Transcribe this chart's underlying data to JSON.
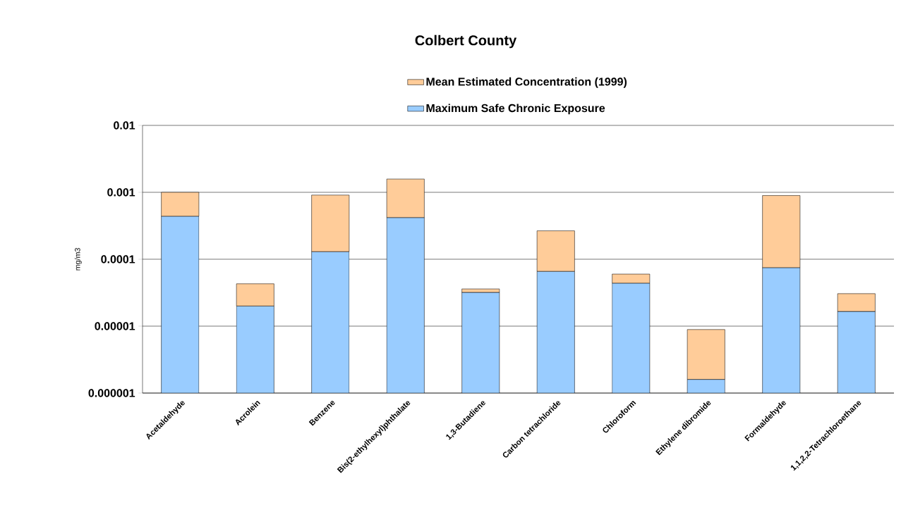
{
  "chart_data": {
    "type": "bar",
    "title": "Colbert County",
    "ylabel": "mg/m3",
    "stacked": true,
    "log": "y",
    "grid": "y",
    "legend": "top",
    "categories": [
      "Acetaldehyde",
      "Acrolein",
      "Benzene",
      "Bis(2-ethylhexyl)phthalate",
      "1,3-Butadiene",
      "Carbon tetrachloride",
      "Chloroform",
      "Ethylene dibromide",
      "Formaldehyde",
      "1,1,2,2-Tetrachloroethane"
    ],
    "series": [
      {
        "name": "Maximum Safe Chronic Exposure",
        "color": "#99ccff",
        "values": [
          0.00044,
          2e-05,
          0.00013,
          0.00042,
          3.2e-05,
          6.6e-05,
          4.4e-05,
          1.6e-06,
          7.5e-05,
          1.66e-05
        ]
      },
      {
        "name": "Mean Estimated Concentration (1999)",
        "color": "#ffcc99",
        "values": [
          0.00056,
          2.3e-05,
          0.00078,
          0.00116,
          4e-06,
          0.0002,
          1.6e-05,
          7.3e-06,
          0.00082,
          1.4e-05
        ]
      }
    ],
    "ylim": [
      1e-06,
      0.01
    ],
    "yticks": [
      {
        "value": 1e-06,
        "label": "0.000001"
      },
      {
        "value": 1e-05,
        "label": "0.00001"
      },
      {
        "value": 0.0001,
        "label": "0.0001"
      },
      {
        "value": 0.001,
        "label": "0.001"
      },
      {
        "value": 0.01,
        "label": "0.01"
      }
    ]
  }
}
